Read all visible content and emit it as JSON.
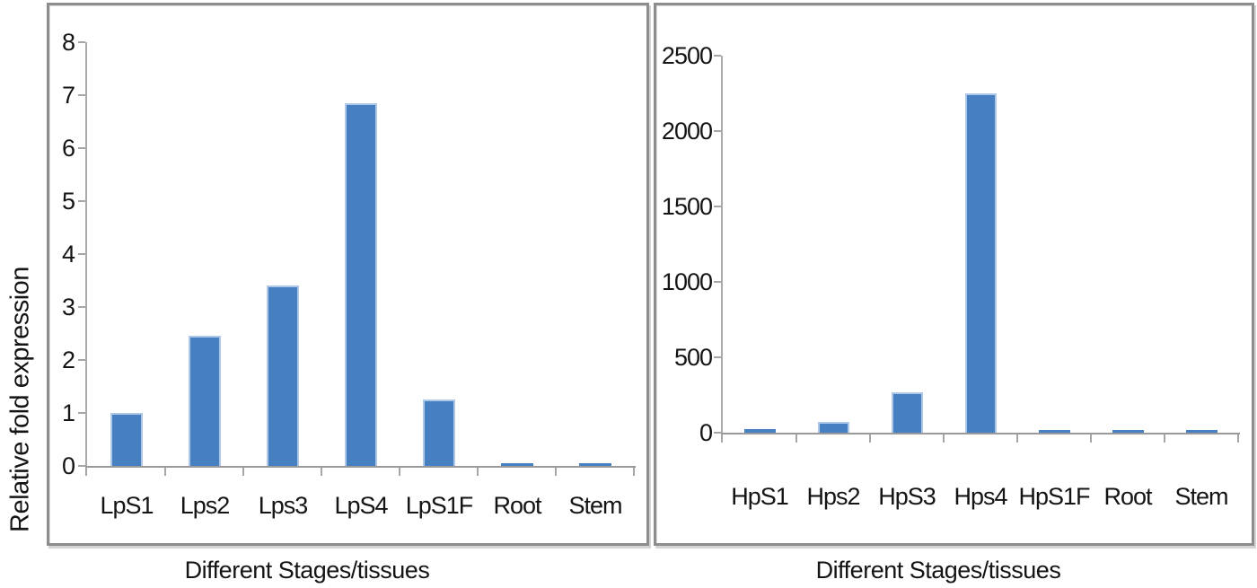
{
  "figure": {
    "description": "Two side-by-side bar charts of relative fold expression across developmental stages and tissues",
    "colors": {
      "bar_fill": "#4680c0",
      "bar_edge": "#aec7e6",
      "axis_line": "#a6a6a6",
      "panel_border": "#8d8d8d",
      "text": "#141414"
    }
  },
  "chart_data": [
    {
      "type": "bar",
      "title": "",
      "categories": [
        "LpS1",
        "Lps2",
        "Lps3",
        "LpS4",
        "LpS1F",
        "Root",
        "Stem"
      ],
      "values": [
        1.0,
        2.45,
        3.4,
        6.85,
        1.25,
        0.05,
        0.05
      ],
      "xlabel": "Different Stages/tissues",
      "ylabel": "Relative fold expression",
      "ylim": [
        0,
        8
      ],
      "yticks": [
        0,
        1,
        2,
        3,
        4,
        5,
        6,
        7,
        8
      ],
      "grid": false,
      "legend": "none",
      "bar_color": "#4680c0"
    },
    {
      "type": "bar",
      "title": "",
      "categories": [
        "HpS1",
        "Hps2",
        "HpS3",
        "Hps4",
        "HpS1F",
        "Root",
        "Stem"
      ],
      "values": [
        25,
        70,
        270,
        2250,
        20,
        20,
        20
      ],
      "xlabel": "Different Stages/tissues",
      "ylabel": "",
      "ylim": [
        0,
        2500
      ],
      "yticks": [
        0,
        500,
        1000,
        1500,
        2000,
        2500
      ],
      "grid": false,
      "legend": "none",
      "bar_color": "#4680c0"
    }
  ]
}
